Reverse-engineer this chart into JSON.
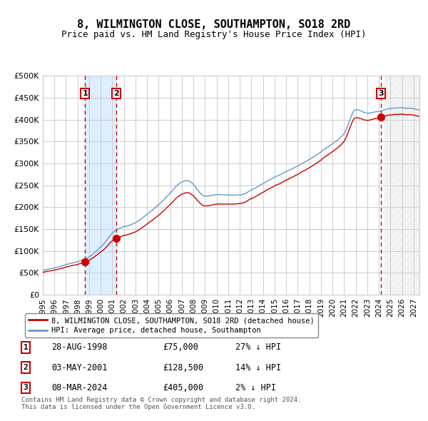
{
  "title": "8, WILMINGTON CLOSE, SOUTHAMPTON, SO18 2RD",
  "subtitle": "Price paid vs. HM Land Registry's House Price Index (HPI)",
  "transactions": [
    {
      "num": 1,
      "date": "28-AUG-1998",
      "price": 75000,
      "date_float": 1998.65,
      "pct": "27% ↓ HPI"
    },
    {
      "num": 2,
      "date": "03-MAY-2001",
      "price": 128500,
      "date_float": 2001.33,
      "pct": "14% ↓ HPI"
    },
    {
      "num": 3,
      "date": "08-MAR-2024",
      "price": 405000,
      "date_float": 2024.18,
      "pct": "2% ↓ HPI"
    }
  ],
  "legend_label_red": "8, WILMINGTON CLOSE, SOUTHAMPTON, SO18 2RD (detached house)",
  "legend_label_blue": "HPI: Average price, detached house, Southampton",
  "footer": "Contains HM Land Registry data © Crown copyright and database right 2024.\nThis data is licensed under the Open Government Licence v3.0.",
  "ylim": [
    0,
    500000
  ],
  "xlim_start": 1995.0,
  "xlim_end": 2027.5,
  "future_start": 2024.5,
  "shaded_region": [
    1998.65,
    2001.33
  ],
  "red_color": "#cc0000",
  "blue_color": "#6699cc",
  "bg_color": "#ffffff",
  "grid_color": "#cccccc",
  "shaded_color": "#ddeeff"
}
